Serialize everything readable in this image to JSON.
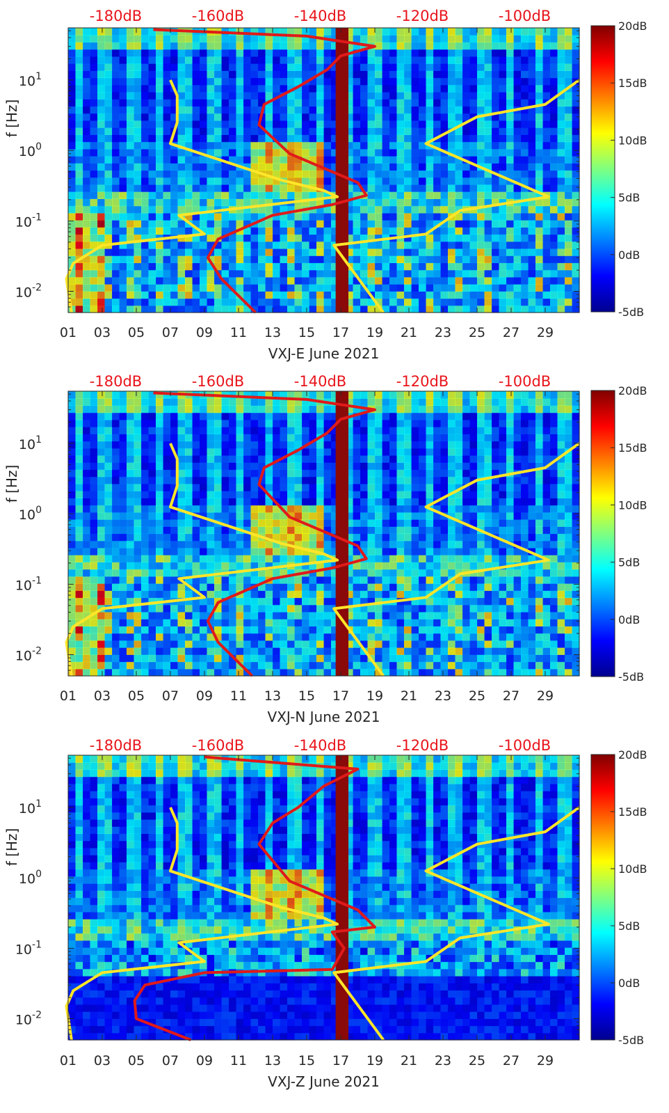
{
  "chart_data": [
    {
      "type": "heatmap",
      "panel": "VXJ-E",
      "xlabel": "VXJ-E June 2021",
      "ylabel": "f [Hz]",
      "xlim": [
        1,
        31
      ],
      "ylim": [
        0.005,
        55
      ],
      "yscale": "log",
      "x_tick_labels": [
        "01",
        "03",
        "05",
        "07",
        "09",
        "11",
        "13",
        "15",
        "17",
        "19",
        "21",
        "23",
        "25",
        "27",
        "29"
      ],
      "x_tick_days": [
        1,
        3,
        5,
        7,
        9,
        11,
        13,
        15,
        17,
        19,
        21,
        23,
        25,
        27,
        29
      ],
      "y_tick_labels": [
        {
          "base": "10",
          "exp": "-2",
          "value": 0.01
        },
        {
          "base": "10",
          "exp": "-1",
          "value": 0.1
        },
        {
          "base": "10",
          "exp": "0",
          "value": 1
        },
        {
          "base": "10",
          "exp": "1",
          "value": 10
        }
      ],
      "top_axis_labels": [
        "-180dB",
        "-160dB",
        "-140dB",
        "-120dB",
        "-100dB"
      ],
      "top_axis_values": [
        -180,
        -160,
        -140,
        -120,
        -100
      ],
      "colorbar": {
        "labels": [
          "20dB",
          "15dB",
          "10dB",
          "5dB",
          "0dB",
          "-5dB"
        ],
        "values": [
          20,
          15,
          10,
          5,
          0,
          -5
        ],
        "range": [
          -5,
          20
        ]
      },
      "highlight_band_days": [
        16.7,
        17.45
      ],
      "series": [
        {
          "color": "#ffe629",
          "points": [
            [
              1.2,
              0.005
            ],
            [
              0.9,
              0.015
            ],
            [
              1.3,
              0.025
            ],
            [
              3,
              0.045
            ],
            [
              9,
              0.065
            ],
            [
              7.5,
              0.12
            ],
            [
              16.8,
              0.22
            ],
            [
              16,
              0.27
            ],
            [
              13.5,
              0.38
            ],
            [
              7,
              1.25
            ],
            [
              7.4,
              2.5
            ],
            [
              7.4,
              6
            ],
            [
              7,
              10
            ]
          ]
        },
        {
          "color": "#ffe629",
          "points": [
            [
              19.5,
              0.005
            ],
            [
              16.6,
              0.045
            ],
            [
              22,
              0.065
            ],
            [
              24,
              0.14
            ],
            [
              29.2,
              0.22
            ],
            [
              22,
              1.25
            ],
            [
              25,
              3
            ],
            [
              29,
              4.5
            ],
            [
              31,
              10
            ]
          ]
        },
        {
          "color": "#e01a1a",
          "points": [
            [
              12,
              0.005
            ],
            [
              10,
              0.015
            ],
            [
              9.2,
              0.03
            ],
            [
              9.8,
              0.055
            ],
            [
              13,
              0.12
            ],
            [
              16.5,
              0.17
            ],
            [
              18.5,
              0.23
            ],
            [
              18,
              0.35
            ],
            [
              14,
              0.9
            ],
            [
              12.2,
              2.3
            ],
            [
              12.5,
              4.5
            ],
            [
              14.5,
              8
            ],
            [
              16.2,
              14
            ],
            [
              17,
              22
            ],
            [
              19,
              30
            ],
            [
              15,
              42
            ],
            [
              6,
              52
            ]
          ]
        }
      ]
    },
    {
      "type": "heatmap",
      "panel": "VXJ-N",
      "xlabel": "VXJ-N June 2021",
      "ylabel": "f [Hz]",
      "xlim": [
        1,
        31
      ],
      "ylim": [
        0.005,
        55
      ],
      "yscale": "log",
      "x_tick_labels": [
        "01",
        "03",
        "05",
        "07",
        "09",
        "11",
        "13",
        "15",
        "17",
        "19",
        "21",
        "23",
        "25",
        "27",
        "29"
      ],
      "x_tick_days": [
        1,
        3,
        5,
        7,
        9,
        11,
        13,
        15,
        17,
        19,
        21,
        23,
        25,
        27,
        29
      ],
      "y_tick_labels": [
        {
          "base": "10",
          "exp": "-2",
          "value": 0.01
        },
        {
          "base": "10",
          "exp": "-1",
          "value": 0.1
        },
        {
          "base": "10",
          "exp": "0",
          "value": 1
        },
        {
          "base": "10",
          "exp": "1",
          "value": 10
        }
      ],
      "top_axis_labels": [
        "-180dB",
        "-160dB",
        "-140dB",
        "-120dB",
        "-100dB"
      ],
      "top_axis_values": [
        -180,
        -160,
        -140,
        -120,
        -100
      ],
      "colorbar": {
        "labels": [
          "20dB",
          "15dB",
          "10dB",
          "5dB",
          "0dB",
          "-5dB"
        ],
        "values": [
          20,
          15,
          10,
          5,
          0,
          -5
        ],
        "range": [
          -5,
          20
        ]
      },
      "highlight_band_days": [
        16.7,
        17.45
      ],
      "series": [
        {
          "color": "#ffe629",
          "points": [
            [
              1.2,
              0.005
            ],
            [
              0.9,
              0.015
            ],
            [
              1.3,
              0.025
            ],
            [
              3,
              0.045
            ],
            [
              9,
              0.065
            ],
            [
              7.5,
              0.12
            ],
            [
              16.8,
              0.22
            ],
            [
              16,
              0.27
            ],
            [
              13.5,
              0.38
            ],
            [
              7,
              1.25
            ],
            [
              7.4,
              2.5
            ],
            [
              7.4,
              6
            ],
            [
              7,
              10
            ]
          ]
        },
        {
          "color": "#ffe629",
          "points": [
            [
              19.5,
              0.005
            ],
            [
              16.6,
              0.045
            ],
            [
              22,
              0.065
            ],
            [
              24,
              0.14
            ],
            [
              29.2,
              0.22
            ],
            [
              22,
              1.25
            ],
            [
              25,
              3
            ],
            [
              29,
              4.5
            ],
            [
              31,
              10
            ]
          ]
        },
        {
          "color": "#e01a1a",
          "points": [
            [
              11.8,
              0.005
            ],
            [
              9.8,
              0.015
            ],
            [
              9.2,
              0.03
            ],
            [
              9.8,
              0.055
            ],
            [
              13,
              0.12
            ],
            [
              16.5,
              0.17
            ],
            [
              18.5,
              0.23
            ],
            [
              18,
              0.35
            ],
            [
              14,
              0.9
            ],
            [
              12.2,
              2.6
            ],
            [
              12.5,
              4.5
            ],
            [
              14.5,
              8
            ],
            [
              16.2,
              14
            ],
            [
              17,
              22
            ],
            [
              19,
              30
            ],
            [
              15,
              42
            ],
            [
              6,
              52
            ]
          ]
        }
      ]
    },
    {
      "type": "heatmap",
      "panel": "VXJ-Z",
      "xlabel": "VXJ-Z June 2021",
      "ylabel": "f [Hz]",
      "xlim": [
        1,
        31
      ],
      "ylim": [
        0.005,
        55
      ],
      "yscale": "log",
      "x_tick_labels": [
        "01",
        "03",
        "05",
        "07",
        "09",
        "11",
        "13",
        "15",
        "17",
        "19",
        "21",
        "23",
        "25",
        "27",
        "29"
      ],
      "x_tick_days": [
        1,
        3,
        5,
        7,
        9,
        11,
        13,
        15,
        17,
        19,
        21,
        23,
        25,
        27,
        29
      ],
      "y_tick_labels": [
        {
          "base": "10",
          "exp": "-2",
          "value": 0.01
        },
        {
          "base": "10",
          "exp": "-1",
          "value": 0.1
        },
        {
          "base": "10",
          "exp": "0",
          "value": 1
        },
        {
          "base": "10",
          "exp": "1",
          "value": 10
        }
      ],
      "top_axis_labels": [
        "-180dB",
        "-160dB",
        "-140dB",
        "-120dB",
        "-100dB"
      ],
      "top_axis_values": [
        -180,
        -160,
        -140,
        -120,
        -100
      ],
      "colorbar": {
        "labels": [
          "20dB",
          "15dB",
          "10dB",
          "5dB",
          "0dB",
          "-5dB"
        ],
        "values": [
          20,
          15,
          10,
          5,
          0,
          -5
        ],
        "range": [
          -5,
          20
        ]
      },
      "highlight_band_days": [
        16.7,
        17.45
      ],
      "series": [
        {
          "color": "#ffe629",
          "points": [
            [
              1.2,
              0.005
            ],
            [
              0.9,
              0.015
            ],
            [
              1.3,
              0.025
            ],
            [
              3,
              0.045
            ],
            [
              9,
              0.065
            ],
            [
              7.5,
              0.12
            ],
            [
              16.8,
              0.22
            ],
            [
              16,
              0.27
            ],
            [
              13.5,
              0.38
            ],
            [
              7,
              1.25
            ],
            [
              7.4,
              2.5
            ],
            [
              7.4,
              6
            ],
            [
              7,
              10
            ]
          ]
        },
        {
          "color": "#ffe629",
          "points": [
            [
              19.5,
              0.005
            ],
            [
              16.6,
              0.045
            ],
            [
              22,
              0.065
            ],
            [
              24,
              0.14
            ],
            [
              29.2,
              0.22
            ],
            [
              22,
              1.25
            ],
            [
              25,
              3
            ],
            [
              29,
              4.5
            ],
            [
              31,
              10
            ]
          ]
        },
        {
          "color": "#e01a1a",
          "points": [
            [
              8.2,
              0.005
            ],
            [
              5,
              0.01
            ],
            [
              4.9,
              0.018
            ],
            [
              5.5,
              0.03
            ],
            [
              9,
              0.045
            ],
            [
              16.5,
              0.05
            ],
            [
              17.2,
              0.1
            ],
            [
              16.5,
              0.17
            ],
            [
              19,
              0.2
            ],
            [
              18,
              0.35
            ],
            [
              14,
              0.9
            ],
            [
              12.2,
              3
            ],
            [
              13,
              6
            ],
            [
              14.5,
              10
            ],
            [
              16,
              20
            ],
            [
              18,
              35
            ],
            [
              9,
              52
            ]
          ]
        }
      ]
    }
  ]
}
